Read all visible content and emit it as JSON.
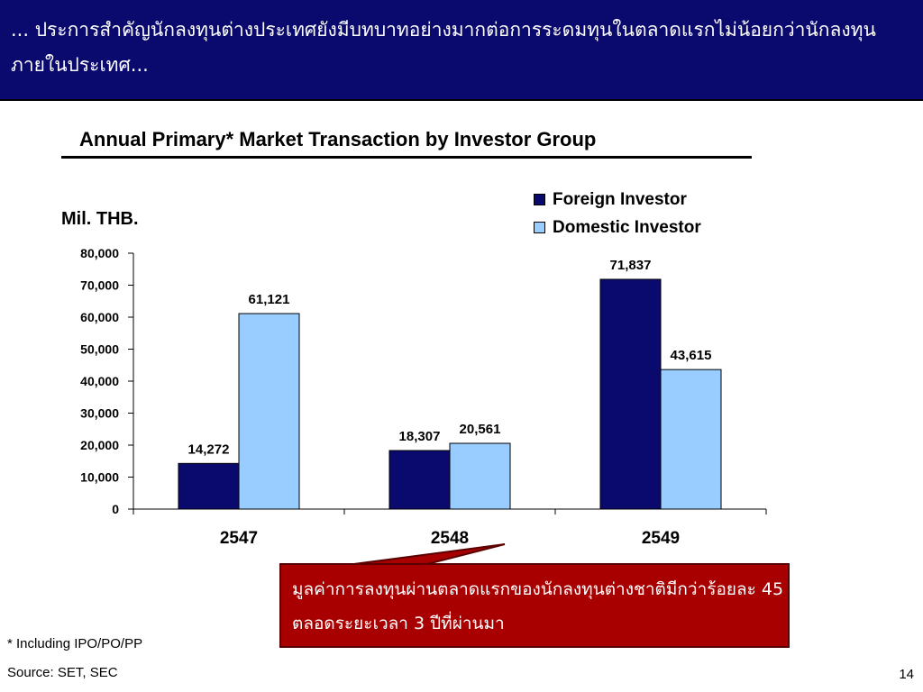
{
  "header": {
    "text": "... ประการสำคัญนักลงทุนต่างประเทศยังมีบทบาทอย่างมากต่อการระดมทุนในตลาดแรกไม่น้อยกว่านักลงทุนภายในประเทศ..."
  },
  "chart_data": {
    "type": "bar",
    "title": "Annual Primary* Market Transaction by Investor Group",
    "ylabel": "Mil. THB.",
    "xlabel": "",
    "categories": [
      "2547",
      "2548",
      "2549"
    ],
    "series": [
      {
        "name": "Foreign Investor",
        "values": [
          14272,
          18307,
          71837
        ],
        "labels": [
          "14,272",
          "18,307",
          "71,837"
        ],
        "color": "#0a0a6e"
      },
      {
        "name": "Domestic Investor",
        "values": [
          61121,
          20561,
          43615
        ],
        "labels": [
          "61,121",
          "20,561",
          "43,615"
        ],
        "color": "#99ccff"
      }
    ],
    "ylim": [
      0,
      80000
    ],
    "yticks": [
      0,
      10000,
      20000,
      30000,
      40000,
      50000,
      60000,
      70000,
      80000
    ],
    "ytick_labels": [
      "0",
      "10,000",
      "20,000",
      "30,000",
      "40,000",
      "50,000",
      "60,000",
      "70,000",
      "80,000"
    ],
    "grid": false,
    "legend_position": "top-right"
  },
  "callout": {
    "text": "มูลค่าการลงทุนผ่านตลาดแรกของนักลงทุนต่างชาติมีกว่าร้อยละ 45 ตลอดระยะเวลา 3 ปีที่ผ่านมา",
    "color": "#a80000"
  },
  "footer": {
    "footnote": "* Including IPO/PO/PP",
    "source": "Source: SET, SEC",
    "page_number": "14"
  }
}
